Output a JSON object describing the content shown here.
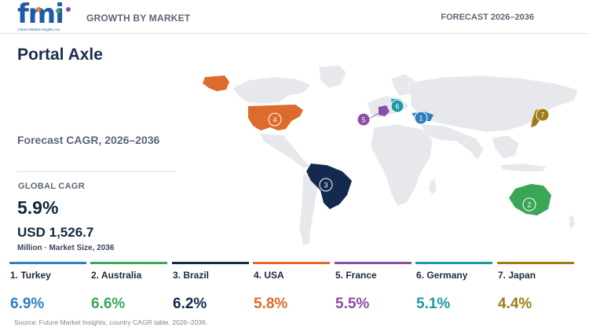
{
  "header": {
    "logo_text": "fmi",
    "logo_sub": "Future Market Insights, Inc.",
    "left": "GROWTH BY MARKET",
    "right": "FORECAST 2026–2036"
  },
  "title": "Portal Axle",
  "subtitle": "Forecast CAGR, 2026–2036",
  "global": {
    "label": "GLOBAL CAGR",
    "value": "5.9%",
    "market_value": "USD 1,526.7",
    "market_label": "Million · Market Size, 2036"
  },
  "countries": [
    {
      "rank": "1",
      "label": "1. Turkey",
      "cagr": "6.9%",
      "color": "#2e7fbf"
    },
    {
      "rank": "2",
      "label": "2. Australia",
      "cagr": "6.6%",
      "color": "#3aa757"
    },
    {
      "rank": "3",
      "label": "3. Brazil",
      "cagr": "6.2%",
      "color": "#13294f"
    },
    {
      "rank": "4",
      "label": "4. USA",
      "cagr": "5.8%",
      "color": "#dd6b2b"
    },
    {
      "rank": "5",
      "label": "5. France",
      "cagr": "5.5%",
      "color": "#8b4ea3"
    },
    {
      "rank": "6",
      "label": "6. Germany",
      "cagr": "5.1%",
      "color": "#1d9aa8"
    },
    {
      "rank": "7",
      "label": "7. Japan",
      "cagr": "4.4%",
      "color": "#a07a15"
    }
  ],
  "source": "Source: Future Market Insights; country CAGR table, 2026–2036."
}
